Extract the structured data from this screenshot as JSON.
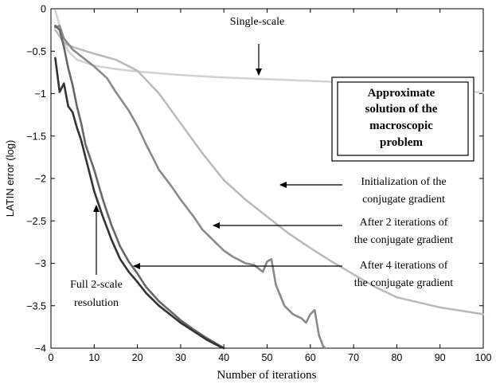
{
  "chart_data": {
    "type": "line",
    "title": "",
    "xlabel": "Number of iterations",
    "ylabel": "LATIN error (log)",
    "xlim": [
      0,
      100
    ],
    "ylim": [
      -4,
      0
    ],
    "xticks": [
      "0",
      "10",
      "20",
      "30",
      "40",
      "50",
      "60",
      "70",
      "80",
      "90",
      "100"
    ],
    "yticks": [
      "0",
      "−0.5",
      "−1",
      "−1.5",
      "−2",
      "−2.5",
      "−3",
      "−3.5",
      "−4"
    ],
    "grid": false,
    "series": [
      {
        "name": "Single-scale",
        "color": "#d2d2d2",
        "width": 2.5,
        "points": [
          [
            1,
            -0.02
          ],
          [
            2,
            -0.2
          ],
          [
            3,
            -0.38
          ],
          [
            4,
            -0.5
          ],
          [
            6,
            -0.6
          ],
          [
            10,
            -0.67
          ],
          [
            15,
            -0.71
          ],
          [
            20,
            -0.74
          ],
          [
            30,
            -0.78
          ],
          [
            40,
            -0.81
          ],
          [
            50,
            -0.83
          ],
          [
            60,
            -0.85
          ],
          [
            70,
            -0.87
          ],
          [
            80,
            -0.9
          ],
          [
            90,
            -0.94
          ],
          [
            100,
            -0.99
          ]
        ]
      },
      {
        "name": "Initialization of the conjugate gradient",
        "color": "#b9b9b9",
        "width": 2.5,
        "points": [
          [
            1,
            -0.25
          ],
          [
            3,
            -0.4
          ],
          [
            5,
            -0.45
          ],
          [
            10,
            -0.53
          ],
          [
            15,
            -0.6
          ],
          [
            20,
            -0.73
          ],
          [
            25,
            -1.0
          ],
          [
            30,
            -1.35
          ],
          [
            35,
            -1.7
          ],
          [
            40,
            -2.02
          ],
          [
            45,
            -2.25
          ],
          [
            50,
            -2.45
          ],
          [
            55,
            -2.65
          ],
          [
            60,
            -2.82
          ],
          [
            65,
            -2.98
          ],
          [
            70,
            -3.13
          ],
          [
            75,
            -3.28
          ],
          [
            80,
            -3.4
          ],
          [
            90,
            -3.52
          ],
          [
            100,
            -3.6
          ]
        ]
      },
      {
        "name": "After 2 iterations of the conjugate gradient",
        "color": "#8a8a8a",
        "width": 2.6,
        "points": [
          [
            1,
            -0.22
          ],
          [
            2,
            -0.2
          ],
          [
            3,
            -0.35
          ],
          [
            5,
            -0.48
          ],
          [
            8,
            -0.6
          ],
          [
            10,
            -0.68
          ],
          [
            13,
            -0.82
          ],
          [
            15,
            -0.98
          ],
          [
            18,
            -1.2
          ],
          [
            20,
            -1.38
          ],
          [
            22,
            -1.6
          ],
          [
            25,
            -1.9
          ],
          [
            28,
            -2.1
          ],
          [
            30,
            -2.25
          ],
          [
            33,
            -2.45
          ],
          [
            35,
            -2.6
          ],
          [
            38,
            -2.75
          ],
          [
            40,
            -2.85
          ],
          [
            42,
            -2.92
          ],
          [
            45,
            -3.0
          ],
          [
            47,
            -3.02
          ],
          [
            49,
            -3.1
          ],
          [
            50,
            -2.98
          ],
          [
            51,
            -2.95
          ],
          [
            52,
            -3.25
          ],
          [
            54,
            -3.5
          ],
          [
            56,
            -3.6
          ],
          [
            58,
            -3.65
          ],
          [
            59,
            -3.7
          ],
          [
            60,
            -3.6
          ],
          [
            61,
            -3.55
          ],
          [
            62,
            -3.85
          ],
          [
            63,
            -3.98
          ],
          [
            63.5,
            -4.0
          ]
        ]
      },
      {
        "name": "After 4 iterations of the conjugate gradient",
        "color": "#676767",
        "width": 2.6,
        "points": [
          [
            1,
            -0.2
          ],
          [
            2,
            -0.25
          ],
          [
            3,
            -0.45
          ],
          [
            4,
            -0.7
          ],
          [
            5,
            -0.9
          ],
          [
            6,
            -1.15
          ],
          [
            7,
            -1.35
          ],
          [
            8,
            -1.6
          ],
          [
            10,
            -1.9
          ],
          [
            12,
            -2.25
          ],
          [
            14,
            -2.55
          ],
          [
            16,
            -2.8
          ],
          [
            18,
            -2.98
          ],
          [
            20,
            -3.12
          ],
          [
            22,
            -3.28
          ],
          [
            25,
            -3.45
          ],
          [
            28,
            -3.58
          ],
          [
            30,
            -3.67
          ],
          [
            33,
            -3.78
          ],
          [
            36,
            -3.88
          ],
          [
            39,
            -3.97
          ],
          [
            40,
            -4.0
          ]
        ]
      },
      {
        "name": "Full 2-scale resolution",
        "color": "#333333",
        "width": 2.6,
        "points": [
          [
            1,
            -0.58
          ],
          [
            2,
            -0.98
          ],
          [
            3,
            -0.88
          ],
          [
            4,
            -1.15
          ],
          [
            5,
            -1.22
          ],
          [
            6,
            -1.4
          ],
          [
            7,
            -1.55
          ],
          [
            8,
            -1.75
          ],
          [
            9,
            -1.95
          ],
          [
            10,
            -2.15
          ],
          [
            12,
            -2.45
          ],
          [
            14,
            -2.72
          ],
          [
            16,
            -2.95
          ],
          [
            18,
            -3.1
          ],
          [
            20,
            -3.22
          ],
          [
            22,
            -3.35
          ],
          [
            25,
            -3.5
          ],
          [
            28,
            -3.62
          ],
          [
            30,
            -3.7
          ],
          [
            33,
            -3.8
          ],
          [
            36,
            -3.9
          ],
          [
            39,
            -3.98
          ],
          [
            40,
            -4.0
          ]
        ]
      }
    ],
    "annotations": [
      {
        "lines": [
          "Single-scale"
        ],
        "arrow_to": [
          48.5,
          -0.82
        ]
      },
      {
        "lines": [
          "Initialization  of the",
          "conjugate gradient"
        ],
        "arrow_to": [
          53,
          -2.08
        ]
      },
      {
        "lines": [
          "After 2 iterations of",
          "the conjugate gradient"
        ],
        "arrow_to": [
          38,
          -2.55
        ]
      },
      {
        "lines": [
          "After 4 iterations of",
          "the conjugate gradient"
        ],
        "arrow_to": [
          19,
          -3.03
        ]
      },
      {
        "lines": [
          "Full 2-scale",
          "resolution"
        ],
        "arrow_to": [
          11,
          -2.28
        ]
      }
    ],
    "boxed_label": [
      "Approximate",
      "solution of the",
      "macroscopic",
      "problem"
    ]
  }
}
